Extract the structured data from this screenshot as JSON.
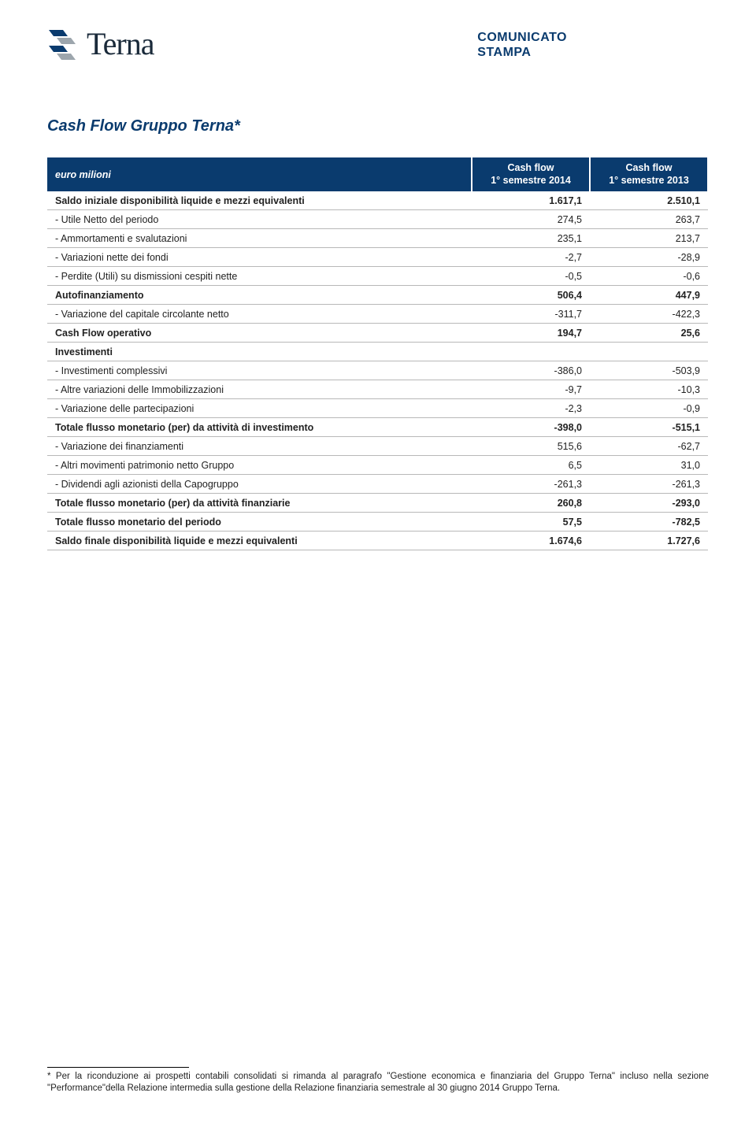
{
  "header": {
    "company_name": "Terna",
    "press_label_line1": "COMUNICATO",
    "press_label_line2": "STAMPA",
    "logo_colors": {
      "blue": "#0a3b6e",
      "gray": "#9da6ad"
    }
  },
  "title": "Cash Flow Gruppo Terna*",
  "table": {
    "header_bg": "#0a3b6e",
    "header_text": "#ffffff",
    "row_border": "#b8b8b8",
    "col_headers": {
      "row_label": "euro milioni",
      "c1_line1": "Cash flow",
      "c1_line2": "1° semestre 2014",
      "c2_line1": "Cash flow",
      "c2_line2": "1° semestre 2013"
    },
    "rows": [
      {
        "label": "Saldo iniziale disponibilità liquide e mezzi equivalenti",
        "v1": "1.617,1",
        "v2": "2.510,1",
        "bold": true
      },
      {
        "label": "- Utile Netto del periodo",
        "v1": "274,5",
        "v2": "263,7"
      },
      {
        "label": "- Ammortamenti e svalutazioni",
        "v1": "235,1",
        "v2": "213,7"
      },
      {
        "label": "- Variazioni nette dei fondi",
        "v1": "-2,7",
        "v2": "-28,9"
      },
      {
        "label": "- Perdite (Utili) su dismissioni cespiti nette",
        "v1": "-0,5",
        "v2": "-0,6"
      },
      {
        "label": "Autofinanziamento",
        "v1": "506,4",
        "v2": "447,9",
        "bold": true
      },
      {
        "label": "- Variazione del capitale circolante netto",
        "v1": "-311,7",
        "v2": "-422,3"
      },
      {
        "label": "Cash Flow operativo",
        "v1": "194,7",
        "v2": "25,6",
        "bold": true
      },
      {
        "label": "Investimenti",
        "v1": "",
        "v2": "",
        "bold": true
      },
      {
        "label": "- Investimenti complessivi",
        "v1": "-386,0",
        "v2": "-503,9"
      },
      {
        "label": "- Altre variazioni delle Immobilizzazioni",
        "v1": "-9,7",
        "v2": "-10,3"
      },
      {
        "label": " - Variazione delle partecipazioni",
        "v1": "-2,3",
        "v2": "-0,9"
      },
      {
        "label": "Totale flusso monetario (per) da attività di investimento",
        "v1": "-398,0",
        "v2": "-515,1",
        "bold": true
      },
      {
        "label": "- Variazione dei finanziamenti",
        "v1": "515,6",
        "v2": "-62,7"
      },
      {
        "label": "- Altri movimenti patrimonio netto Gruppo",
        "v1": "6,5",
        "v2": "31,0"
      },
      {
        "label": "- Dividendi agli azionisti della Capogruppo",
        "v1": "-261,3",
        "v2": "-261,3"
      },
      {
        "label": "Totale flusso monetario (per) da attività finanziarie",
        "v1": "260,8",
        "v2": "-293,0",
        "bold": true
      },
      {
        "label": "Totale flusso monetario del periodo",
        "v1": "57,5",
        "v2": "-782,5",
        "bold": true
      },
      {
        "label": "Saldo finale disponibilità liquide e mezzi equivalenti",
        "v1": "1.674,6",
        "v2": "1.727,6",
        "bold": true
      }
    ]
  },
  "footnote": "* Per la riconduzione ai prospetti contabili consolidati si rimanda al paragrafo \"Gestione economica e finanziaria del Gruppo Terna\" incluso nella sezione \"Performance\"della Relazione intermedia sulla gestione della Relazione finanziaria semestrale al 30 giugno 2014 Gruppo Terna."
}
